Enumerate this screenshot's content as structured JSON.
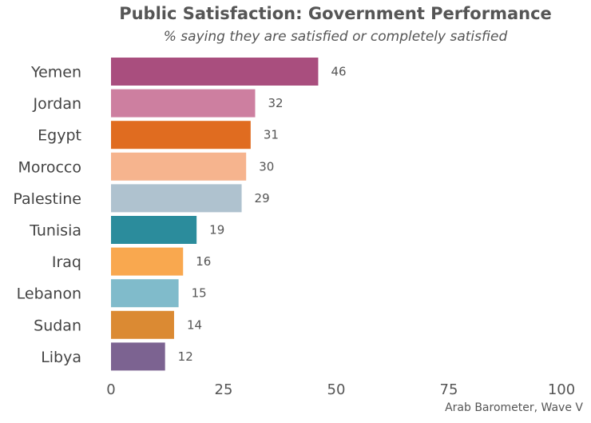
{
  "chart_data": {
    "type": "bar",
    "orientation": "horizontal",
    "title": "Public Satisfaction: Government Performance",
    "subtitle": "% saying they are satisfied or completely satisfied",
    "caption": "Arab Barometer, Wave V",
    "categories": [
      "Yemen",
      "Jordan",
      "Egypt",
      "Morocco",
      "Palestine",
      "Tunisia",
      "Iraq",
      "Lebanon",
      "Sudan",
      "Libya"
    ],
    "values": [
      46,
      32,
      31,
      30,
      29,
      19,
      16,
      15,
      14,
      12
    ],
    "colors": [
      "#A94E7E",
      "#CD7FA0",
      "#E06C20",
      "#F6B48E",
      "#AFC2CF",
      "#2B8C9C",
      "#F9A84F",
      "#80BBCB",
      "#DB8A33",
      "#7C6391"
    ],
    "xlim": [
      0,
      100
    ],
    "xticks": [
      0,
      25,
      50,
      75,
      100
    ],
    "grid": false,
    "legend": "none"
  }
}
